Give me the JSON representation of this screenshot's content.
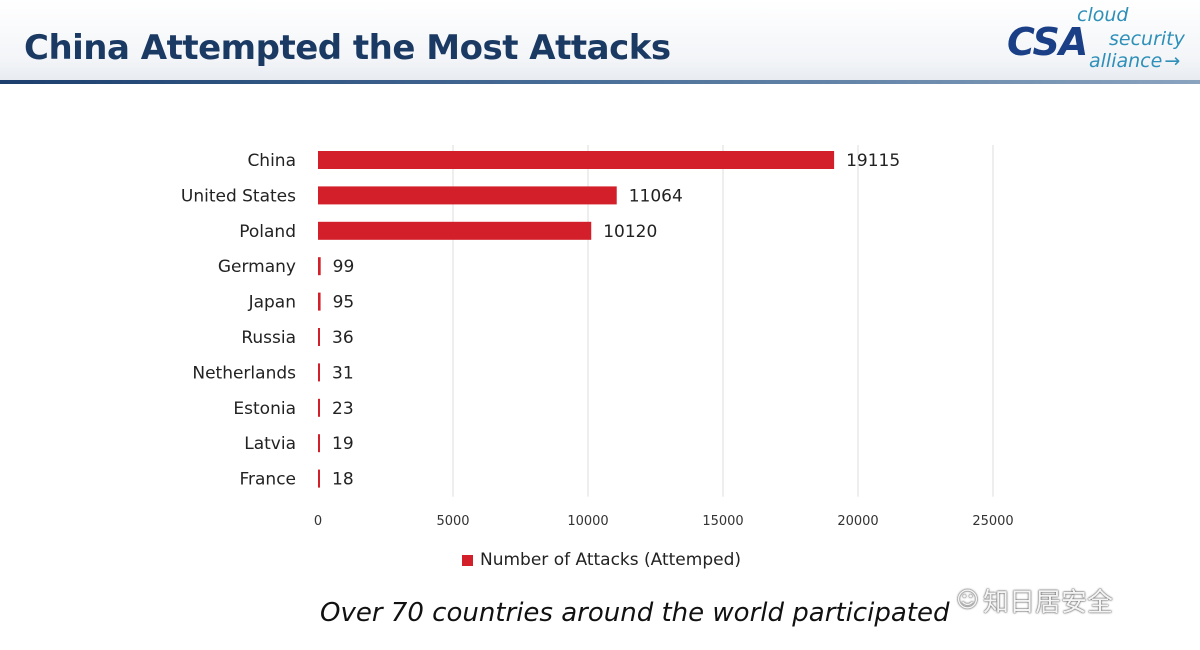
{
  "slide": {
    "title": "China Attempted the Most Attacks",
    "caption": "Over 70 countries around the world participated",
    "logo": {
      "mark": "CSA",
      "words": [
        "cloud",
        "security",
        "alliance"
      ]
    },
    "watermark": "知日居安全"
  },
  "colors": {
    "bar": "#d21f2a",
    "title": "#1b3a63",
    "grid": "#dcdcdc"
  },
  "chart_data": {
    "type": "bar",
    "orientation": "horizontal",
    "title": "",
    "xlabel": "",
    "ylabel": "",
    "categories": [
      "China",
      "United States",
      "Poland",
      "Germany",
      "Japan",
      "Russia",
      "Netherlands",
      "Estonia",
      "Latvia",
      "France"
    ],
    "values": [
      19115,
      11064,
      10120,
      99,
      95,
      36,
      31,
      23,
      19,
      18
    ],
    "value_labels": [
      "19115",
      "11064",
      "10120",
      "99",
      "95",
      "36",
      "31",
      "23",
      "19",
      "18"
    ],
    "xlim": [
      0,
      25000
    ],
    "xticks": [
      0,
      5000,
      10000,
      15000,
      20000,
      25000
    ],
    "xtick_labels": [
      "0",
      "5000",
      "10000",
      "15000",
      "20000",
      "25000"
    ],
    "grid": true,
    "legend": {
      "position": "bottom",
      "entries": [
        "Number of Attacks (Attemped)"
      ]
    }
  }
}
